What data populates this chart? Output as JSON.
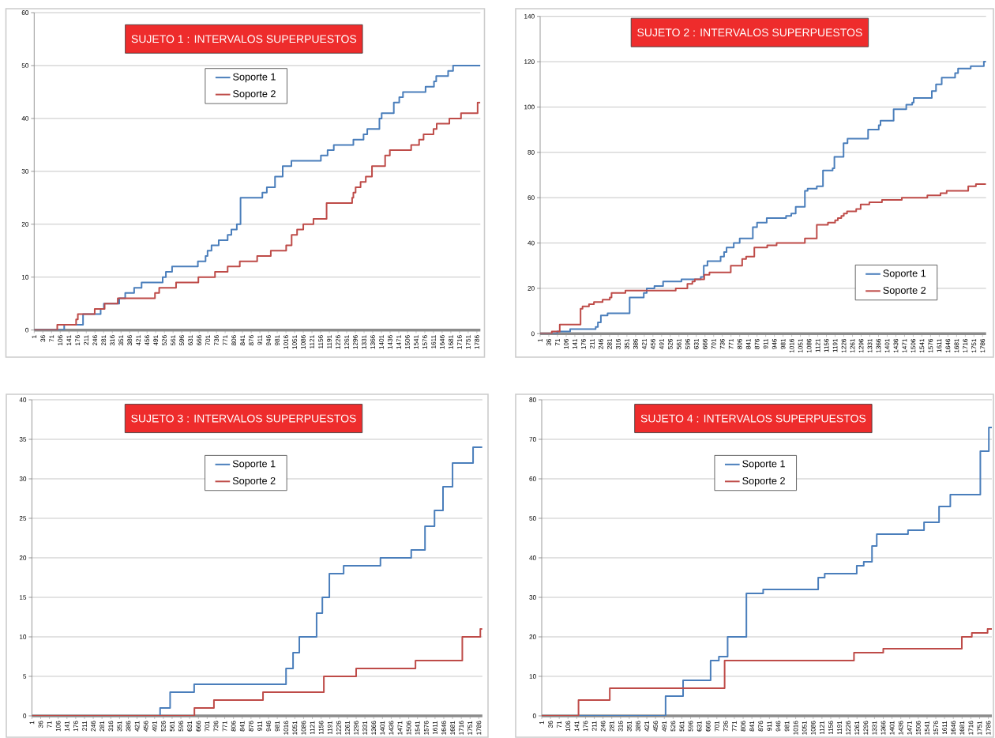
{
  "chart_data": [
    {
      "type": "step",
      "title": "SUJETO  1 : INTERVALOS SUPERPUESTOS",
      "xlim": [
        1,
        1800
      ],
      "ylim": [
        0,
        60
      ],
      "xticks": [
        1,
        36,
        71,
        106,
        141,
        176,
        211,
        246,
        281,
        316,
        351,
        386,
        421,
        456,
        491,
        526,
        561,
        596,
        631,
        666,
        701,
        736,
        771,
        806,
        841,
        876,
        911,
        946,
        981,
        1016,
        1051,
        1086,
        1121,
        1156,
        1191,
        1226,
        1261,
        1296,
        1331,
        1366,
        1401,
        1436,
        1471,
        1506,
        1541,
        1576,
        1611,
        1646,
        1681,
        1716,
        1751,
        1786
      ],
      "yticks": [
        0,
        10,
        20,
        30,
        40,
        50,
        60
      ],
      "grid": "y",
      "legend": "top",
      "series": [
        {
          "name": "Soporte 1",
          "color": "#4a7ebb",
          "x": [
            1,
            122,
            198,
            269,
            282,
            344,
            368,
            404,
            434,
            519,
            532,
            557,
            661,
            692,
            700,
            716,
            745,
            781,
            796,
            818,
            833,
            921,
            939,
            972,
            1003,
            1038,
            1157,
            1184,
            1209,
            1288,
            1329,
            1344,
            1393,
            1402,
            1451,
            1473,
            1488,
            1579,
            1613,
            1622,
            1670,
            1690,
            1800
          ],
          "values": [
            0,
            1,
            3,
            4,
            5,
            6,
            7,
            8,
            9,
            10,
            11,
            12,
            13,
            14,
            15,
            16,
            17,
            18,
            19,
            20,
            25,
            26,
            27,
            29,
            31,
            32,
            33,
            34,
            35,
            36,
            37,
            38,
            40,
            41,
            43,
            44,
            45,
            46,
            47,
            48,
            49,
            50,
            50
          ]
        },
        {
          "name": "Soporte 2",
          "color": "#be4b48",
          "x": [
            1,
            94,
            170,
            177,
            245,
            285,
            338,
            488,
            505,
            573,
            663,
            730,
            781,
            830,
            900,
            955,
            1017,
            1039,
            1061,
            1086,
            1127,
            1180,
            1283,
            1288,
            1297,
            1317,
            1338,
            1363,
            1416,
            1435,
            1521,
            1553,
            1571,
            1611,
            1624,
            1675,
            1722,
            1789,
            1800
          ],
          "values": [
            0,
            1,
            2,
            3,
            4,
            5,
            6,
            7,
            8,
            9,
            10,
            11,
            12,
            13,
            14,
            15,
            16,
            18,
            19,
            20,
            21,
            24,
            25,
            26,
            27,
            28,
            29,
            31,
            33,
            34,
            35,
            36,
            37,
            38,
            39,
            40,
            41,
            43,
            43
          ]
        }
      ]
    },
    {
      "type": "step",
      "title": "SUJETO  2 : INTERVALOS SUPERPUESTOS",
      "xlim": [
        1,
        1800
      ],
      "ylim": [
        0,
        140
      ],
      "xticks": [
        1,
        36,
        71,
        106,
        141,
        176,
        211,
        246,
        281,
        316,
        351,
        386,
        421,
        456,
        491,
        526,
        561,
        596,
        631,
        666,
        701,
        736,
        771,
        806,
        841,
        876,
        911,
        946,
        981,
        1016,
        1051,
        1086,
        1121,
        1156,
        1191,
        1226,
        1261,
        1296,
        1331,
        1366,
        1401,
        1436,
        1471,
        1506,
        1541,
        1576,
        1611,
        1646,
        1681,
        1716,
        1751,
        1786
      ],
      "yticks": [
        0,
        20,
        40,
        60,
        80,
        100,
        120,
        140
      ],
      "grid": "y",
      "legend": "bottom right",
      "series": [
        {
          "name": "Soporte 1",
          "color": "#4a7ebb",
          "x": [
            1,
            70,
            122,
            225,
            234,
            246,
            273,
            362,
            419,
            431,
            462,
            497,
            571,
            649,
            661,
            676,
            729,
            743,
            753,
            782,
            806,
            859,
            876,
            915,
            993,
            1014,
            1032,
            1069,
            1080,
            1117,
            1142,
            1181,
            1188,
            1225,
            1241,
            1324,
            1367,
            1374,
            1427,
            1478,
            1502,
            1508,
            1581,
            1598,
            1621,
            1675,
            1687,
            1738,
            1791,
            1800
          ],
          "values": [
            0,
            1,
            2,
            3,
            5,
            8,
            9,
            16,
            18,
            20,
            21,
            23,
            24,
            25,
            30,
            32,
            34,
            36,
            38,
            40,
            42,
            47,
            49,
            51,
            52,
            53,
            56,
            63,
            64,
            65,
            72,
            73,
            78,
            84,
            86,
            90,
            92,
            94,
            99,
            101,
            102,
            104,
            107,
            110,
            113,
            115,
            117,
            118,
            120,
            120
          ]
        },
        {
          "name": "Soporte 2",
          "color": "#be4b48",
          "x": [
            1,
            48,
            80,
            164,
            172,
            198,
            218,
            253,
            282,
            289,
            345,
            548,
            595,
            615,
            625,
            663,
            684,
            770,
            816,
            832,
            865,
            917,
            955,
            1069,
            1117,
            1162,
            1191,
            1202,
            1216,
            1226,
            1239,
            1276,
            1294,
            1329,
            1380,
            1460,
            1563,
            1616,
            1641,
            1728,
            1759,
            1800
          ],
          "values": [
            0,
            1,
            4,
            11,
            12,
            13,
            14,
            15,
            16,
            18,
            19,
            20,
            22,
            23,
            24,
            26,
            27,
            30,
            33,
            34,
            38,
            39,
            40,
            42,
            48,
            49,
            50,
            51,
            52,
            53,
            54,
            55,
            57,
            58,
            59,
            60,
            61,
            62,
            63,
            65,
            66,
            66
          ]
        }
      ]
    },
    {
      "type": "step",
      "title": "SUJETO  3 : INTERVALOS SUPERPUESTOS",
      "xlim": [
        1,
        1800
      ],
      "ylim": [
        0,
        40
      ],
      "xticks": [
        1,
        36,
        71,
        106,
        141,
        176,
        211,
        246,
        281,
        316,
        351,
        386,
        421,
        456,
        491,
        526,
        561,
        596,
        631,
        666,
        701,
        736,
        771,
        806,
        841,
        876,
        911,
        946,
        981,
        1016,
        1051,
        1086,
        1121,
        1156,
        1191,
        1226,
        1261,
        1296,
        1331,
        1366,
        1401,
        1436,
        1471,
        1506,
        1541,
        1576,
        1611,
        1646,
        1681,
        1716,
        1751,
        1786
      ],
      "yticks": [
        0,
        5,
        10,
        15,
        20,
        25,
        30,
        35,
        40
      ],
      "grid": "y",
      "legend": "top",
      "series": [
        {
          "name": "Soporte 1",
          "color": "#4a7ebb",
          "x": [
            1,
            513,
            553,
            649,
            1016,
            1044,
            1069,
            1138,
            1161,
            1189,
            1246,
            1393,
            1516,
            1571,
            1609,
            1643,
            1681,
            1763,
            1800
          ],
          "values": [
            0,
            1,
            3,
            4,
            6,
            8,
            10,
            13,
            15,
            18,
            19,
            20,
            21,
            24,
            26,
            29,
            32,
            34,
            34
          ]
        },
        {
          "name": "Soporte 2",
          "color": "#be4b48",
          "x": [
            1,
            650,
            728,
            924,
            1167,
            1296,
            1533,
            1720,
            1792,
            1800
          ],
          "values": [
            0,
            1,
            2,
            3,
            5,
            6,
            7,
            10,
            11,
            11
          ]
        }
      ]
    },
    {
      "type": "step",
      "title": "SUJETO  4 : INTERVALOS SUPERPUESTOS",
      "xlim": [
        1,
        1800
      ],
      "ylim": [
        0,
        80
      ],
      "xticks": [
        1,
        36,
        71,
        106,
        141,
        176,
        211,
        246,
        281,
        316,
        351,
        386,
        421,
        456,
        491,
        526,
        561,
        596,
        631,
        666,
        701,
        736,
        771,
        806,
        841,
        876,
        911,
        946,
        981,
        1016,
        1051,
        1086,
        1121,
        1156,
        1191,
        1226,
        1261,
        1296,
        1331,
        1366,
        1401,
        1436,
        1471,
        1506,
        1541,
        1576,
        1611,
        1646,
        1681,
        1716,
        1751,
        1786
      ],
      "yticks": [
        0,
        10,
        20,
        30,
        40,
        50,
        60,
        70,
        80
      ],
      "grid": "y",
      "legend": "top",
      "series": [
        {
          "name": "Soporte 1",
          "color": "#4a7ebb",
          "x": [
            1,
            496,
            566,
            676,
            709,
            744,
            819,
            886,
            1106,
            1132,
            1260,
            1288,
            1321,
            1340,
            1465,
            1529,
            1589,
            1634,
            1754,
            1788,
            1800
          ],
          "values": [
            0,
            5,
            9,
            14,
            15,
            20,
            31,
            32,
            35,
            36,
            38,
            39,
            43,
            46,
            47,
            49,
            53,
            56,
            67,
            73,
            73
          ]
        },
        {
          "name": "Soporte 2",
          "color": "#be4b48",
          "x": [
            1,
            148,
            273,
            732,
            1249,
            1366,
            1680,
            1720,
            1783,
            1800
          ],
          "values": [
            0,
            4,
            7,
            14,
            16,
            17,
            20,
            21,
            22,
            22
          ]
        }
      ]
    }
  ]
}
